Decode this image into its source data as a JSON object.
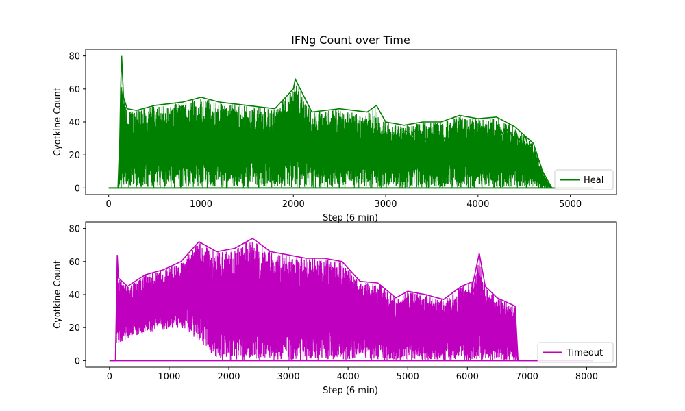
{
  "figure": {
    "title": "IFNg Count over Time"
  },
  "chart_data": [
    {
      "type": "line",
      "title": "IFNg Count over Time",
      "xlabel": "Step (6 min)",
      "ylabel": "Cyotkine Count",
      "xlim": [
        -250,
        5500
      ],
      "ylim": [
        -4,
        84
      ],
      "xticks": [
        0,
        1000,
        2000,
        3000,
        4000,
        5000
      ],
      "yticks": [
        0,
        20,
        40,
        60,
        80
      ],
      "grid": false,
      "legend_position": "lower-right",
      "series": [
        {
          "name": "Heal",
          "color": "#008000",
          "density_band_note": "dense oscillating traces between 0 and the envelope",
          "envelope": {
            "x": [
              0,
              100,
              120,
              130,
              140,
              160,
              200,
              300,
              500,
              800,
              1000,
              1200,
              1500,
              1800,
              2000,
              2020,
              2200,
              2500,
              2800,
              2900,
              3000,
              3200,
              3400,
              3600,
              3800,
              4000,
              4200,
              4400,
              4600,
              4700,
              4800,
              5250
            ],
            "y": [
              0,
              0,
              30,
              60,
              80,
              55,
              48,
              47,
              50,
              52,
              55,
              52,
              50,
              48,
              60,
              66,
              46,
              48,
              46,
              50,
              40,
              38,
              40,
              40,
              44,
              42,
              43,
              37,
              27,
              10,
              0,
              0
            ]
          },
          "mid_trace": {
            "x": [
              2900,
              3000,
              3100,
              3200,
              3300,
              3400,
              3500,
              3600,
              3700,
              3800,
              3900,
              4000,
              4100,
              4200,
              4300,
              4400,
              4500,
              4600,
              4650,
              4700
            ],
            "y": [
              30,
              32,
              28,
              30,
              35,
              30,
              32,
              28,
              30,
              26,
              22,
              15,
              20,
              32,
              35,
              30,
              28,
              22,
              10,
              0
            ]
          }
        }
      ]
    },
    {
      "type": "line",
      "title": "",
      "xlabel": "Step (6 min)",
      "ylabel": "Cyotkine Count",
      "xlim": [
        -400,
        8500
      ],
      "ylim": [
        -4,
        84
      ],
      "xticks": [
        0,
        1000,
        2000,
        3000,
        4000,
        5000,
        6000,
        7000,
        8000
      ],
      "yticks": [
        0,
        20,
        40,
        60,
        80
      ],
      "grid": false,
      "legend_position": "lower-right",
      "series": [
        {
          "name": "Timeout",
          "color": "#bf00bf",
          "envelope": {
            "x": [
              0,
              100,
              130,
              150,
              300,
              600,
              900,
              1200,
              1500,
              1800,
              2100,
              2400,
              2700,
              3000,
              3300,
              3600,
              3900,
              4200,
              4500,
              4800,
              5000,
              5300,
              5600,
              5900,
              6100,
              6200,
              6300,
              6500,
              6800,
              6850,
              7000,
              8100
            ],
            "y": [
              0,
              0,
              64,
              50,
              45,
              52,
              55,
              60,
              72,
              66,
              68,
              74,
              66,
              64,
              62,
              62,
              60,
              48,
              47,
              38,
              42,
              40,
              37,
              45,
              48,
              65,
              45,
              38,
              33,
              0,
              0,
              0
            ]
          },
          "lower_band": {
            "x": [
              130,
              400,
              800,
              1200,
              1500,
              1800,
              2200,
              2600,
              3000,
              3400,
              3800,
              4200,
              4500
            ],
            "y": [
              10,
              15,
              18,
              20,
              12,
              0,
              0,
              0,
              0,
              0,
              0,
              0,
              0
            ]
          },
          "mid_trace": {
            "x": [
              4500,
              4700,
              4900,
              5100,
              5300,
              5500,
              5700,
              5800,
              5900,
              6000,
              6100,
              6200,
              6300,
              6400,
              6500,
              6600,
              6700,
              6800
            ],
            "y": [
              30,
              28,
              25,
              30,
              26,
              22,
              30,
              25,
              20,
              28,
              40,
              50,
              30,
              22,
              20,
              18,
              25,
              0
            ]
          }
        }
      ]
    }
  ]
}
